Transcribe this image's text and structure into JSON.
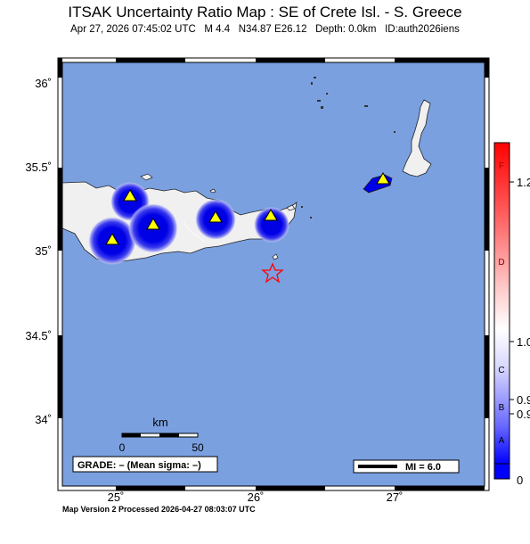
{
  "title": "ITSAK Uncertainty Ratio Map : SE of Crete Isl. - S. Greece",
  "subtitle": {
    "datetime": "Apr 27, 2026 07:45:02 UTC",
    "magnitude": "M 4.4",
    "location": "N34.87 E26.12",
    "depth": "Depth: 0.0km",
    "event_id": "ID:auth2026iens"
  },
  "axes": {
    "lat_labels": [
      "36˚",
      "35.5˚",
      "35˚",
      "34.5˚",
      "34˚"
    ],
    "lon_labels": [
      "25˚",
      "26˚",
      "27˚"
    ]
  },
  "scale_bar": {
    "unit": "km",
    "start": "0",
    "end": "50"
  },
  "grade_box": "GRADE: – (Mean sigma: –)",
  "mi_box": "MI = 6.0",
  "colorbar": {
    "letters": [
      "F",
      "D",
      "C",
      "B",
      "A"
    ],
    "values": [
      "1.2",
      "1.0",
      "0.9",
      "0.9",
      "0"
    ]
  },
  "footer": "Map Version 2 Processed 2026-04-27 08:03:07 UTC",
  "colors": {
    "sea": "#7aa0e0",
    "land": "#f0f0f0",
    "station_fill": "#ffff00",
    "uncertainty_blue": "#0000e6",
    "epicenter": "#ff0000"
  },
  "stations_count_visible": 6
}
